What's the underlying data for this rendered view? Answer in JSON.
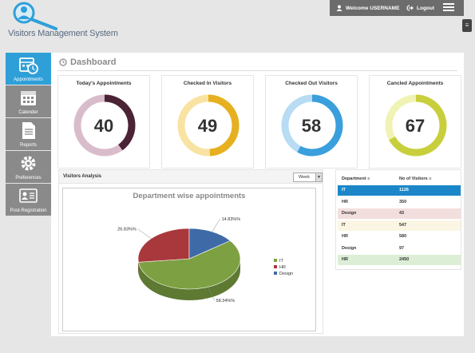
{
  "app": {
    "name": "Visitors Management System"
  },
  "topbar": {
    "welcome": "Welcome USERNAME",
    "logout": "Logout"
  },
  "sidebar": {
    "items": [
      {
        "label": "Appointments",
        "icon": "calendar-clock-icon",
        "active": true
      },
      {
        "label": "Calender",
        "icon": "calendar-icon",
        "active": false
      },
      {
        "label": "Reports",
        "icon": "document-icon",
        "active": false
      },
      {
        "label": "Preferences",
        "icon": "gear-icon",
        "active": false
      },
      {
        "label": "Post-Registration",
        "icon": "id-card-icon",
        "active": false
      }
    ]
  },
  "dashboard": {
    "title": "Dashboard",
    "stats": [
      {
        "title": "Today's Appointments",
        "value": "40",
        "fraction": 0.4,
        "track": "#d9bccb",
        "color": "#4a2335"
      },
      {
        "title": "Checked In Visitors",
        "value": "49",
        "fraction": 0.49,
        "track": "#f8e3a2",
        "color": "#e6b020"
      },
      {
        "title": "Checked Out Visitors",
        "value": "58",
        "fraction": 0.58,
        "track": "#b7dcf3",
        "color": "#3a9fdc"
      },
      {
        "title": "Cancled Appointments",
        "value": "67",
        "fraction": 0.67,
        "track": "#f1f3b5",
        "color": "#c8cf3c"
      }
    ]
  },
  "analysis": {
    "title": "Visitors Analysis",
    "period": "Week"
  },
  "chart_data": {
    "type": "pie",
    "title": "Department wise appointments",
    "series": [
      {
        "name": "IT",
        "value": 58.34,
        "label": "58.34%%",
        "color": "#7da142"
      },
      {
        "name": "HR",
        "value": 26.83,
        "label": "26.83%%",
        "color": "#a8383c"
      },
      {
        "name": "Design",
        "value": 14.83,
        "label": "14.83%%",
        "color": "#3f6aa8"
      }
    ],
    "legend": "right"
  },
  "table": {
    "headers": [
      "Department",
      "No of Visitors"
    ],
    "rows": [
      {
        "dept": "IT",
        "visitors": "1126",
        "bg": "#1b87c9",
        "fg": "#ffffff"
      },
      {
        "dept": "HR",
        "visitors": "350",
        "bg": "#ffffff",
        "fg": "#333333"
      },
      {
        "dept": "Design",
        "visitors": "43",
        "bg": "#f3dede",
        "fg": "#333333"
      },
      {
        "dept": "IT",
        "visitors": "547",
        "bg": "#fbf6e3",
        "fg": "#333333"
      },
      {
        "dept": "HR",
        "visitors": "580",
        "bg": "#ffffff",
        "fg": "#333333"
      },
      {
        "dept": "Design",
        "visitors": "97",
        "bg": "#ffffff",
        "fg": "#333333"
      },
      {
        "dept": "HR",
        "visitors": "2450",
        "bg": "#dcefd6",
        "fg": "#333333"
      }
    ]
  }
}
